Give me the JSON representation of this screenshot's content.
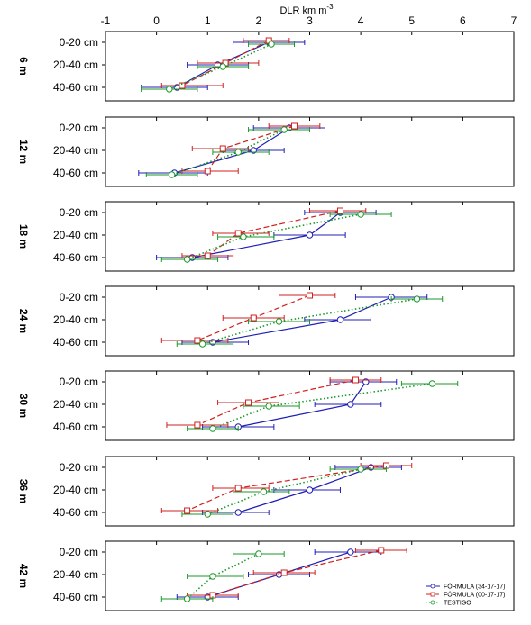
{
  "chart_data": {
    "type": "line",
    "xlabel": "DLR km m-3",
    "xlabel_main": "DLR km m",
    "xlabel_sup": "-3",
    "xlim": [
      -1,
      7
    ],
    "xticks": [
      "-1",
      "0",
      "1",
      "2",
      "3",
      "4",
      "5",
      "6",
      "7"
    ],
    "x_axis_position": "top",
    "depth_categories": [
      "0-20 cm",
      "20-40 cm",
      "40-60 cm"
    ],
    "legend_position": "bottom-right",
    "colors": {
      "formula_34": "#1f1fb4",
      "formula_00": "#d02020",
      "testigo": "#1a9a2a"
    },
    "legend": [
      {
        "key": "formula_34",
        "label": "FÓRMULA (34-17-17)"
      },
      {
        "key": "formula_00",
        "label": "FÓRMULA (00-17-17)"
      },
      {
        "key": "testigo",
        "label": "TESTIGO"
      }
    ],
    "panels": [
      {
        "label": "6 m",
        "series": [
          {
            "key": "formula_34",
            "values": [
              2.2,
              1.2,
              0.4
            ],
            "err_low": [
              1.5,
              0.6,
              -0.3
            ],
            "err_high": [
              2.9,
              1.8,
              1.0
            ]
          },
          {
            "key": "formula_00",
            "values": [
              2.2,
              1.35,
              0.5
            ],
            "err_low": [
              1.7,
              0.8,
              0.1
            ],
            "err_high": [
              2.6,
              2.0,
              1.3
            ]
          },
          {
            "key": "testigo",
            "values": [
              2.25,
              1.3,
              0.25
            ],
            "err_low": [
              1.8,
              0.8,
              -0.3
            ],
            "err_high": [
              2.7,
              1.8,
              0.8
            ]
          }
        ]
      },
      {
        "label": "12 m",
        "series": [
          {
            "key": "formula_34",
            "values": [
              2.6,
              1.9,
              0.35
            ],
            "err_low": [
              1.9,
              1.3,
              -0.35
            ],
            "err_high": [
              3.3,
              2.5,
              1.0
            ]
          },
          {
            "key": "formula_00",
            "values": [
              2.7,
              1.3,
              1.0
            ],
            "err_low": [
              2.2,
              0.7,
              0.5
            ],
            "err_high": [
              3.2,
              1.8,
              1.6
            ]
          },
          {
            "key": "testigo",
            "values": [
              2.5,
              1.6,
              0.3
            ],
            "err_low": [
              1.8,
              1.1,
              -0.2
            ],
            "err_high": [
              3.0,
              2.2,
              0.8
            ]
          }
        ]
      },
      {
        "label": "18 m",
        "series": [
          {
            "key": "formula_34",
            "values": [
              3.6,
              3.0,
              0.7
            ],
            "err_low": [
              2.9,
              2.3,
              0.0
            ],
            "err_high": [
              4.3,
              3.7,
              1.4
            ]
          },
          {
            "key": "formula_00",
            "values": [
              3.6,
              1.6,
              1.0
            ],
            "err_low": [
              3.0,
              1.1,
              0.5
            ],
            "err_high": [
              4.1,
              2.2,
              1.5
            ]
          },
          {
            "key": "testigo",
            "values": [
              4.0,
              1.7,
              0.6
            ],
            "err_low": [
              3.4,
              1.2,
              0.1
            ],
            "err_high": [
              4.6,
              2.3,
              1.2
            ]
          }
        ]
      },
      {
        "label": "24 m",
        "series": [
          {
            "key": "formula_34",
            "values": [
              4.6,
              3.6,
              1.1
            ],
            "err_low": [
              3.9,
              2.9,
              0.5
            ],
            "err_high": [
              5.3,
              4.2,
              1.8
            ]
          },
          {
            "key": "formula_00",
            "values": [
              3.0,
              1.9,
              0.8
            ],
            "err_low": [
              2.4,
              1.3,
              0.1
            ],
            "err_high": [
              3.5,
              2.5,
              1.4
            ]
          },
          {
            "key": "testigo",
            "values": [
              5.1,
              2.4,
              0.9
            ],
            "err_low": [
              4.6,
              1.8,
              0.4
            ],
            "err_high": [
              5.6,
              3.0,
              1.5
            ]
          }
        ]
      },
      {
        "label": "30 m",
        "series": [
          {
            "key": "formula_34",
            "values": [
              4.1,
              3.8,
              1.6
            ],
            "err_low": [
              3.4,
              3.1,
              0.9
            ],
            "err_high": [
              4.7,
              4.4,
              2.3
            ]
          },
          {
            "key": "formula_00",
            "values": [
              3.9,
              1.8,
              0.8
            ],
            "err_low": [
              3.4,
              1.2,
              0.2
            ],
            "err_high": [
              4.4,
              2.4,
              1.4
            ]
          },
          {
            "key": "testigo",
            "values": [
              5.4,
              2.2,
              1.1
            ],
            "err_low": [
              4.8,
              1.7,
              0.6
            ],
            "err_high": [
              5.9,
              2.8,
              1.6
            ]
          }
        ]
      },
      {
        "label": "36 m",
        "series": [
          {
            "key": "formula_34",
            "values": [
              4.2,
              3.0,
              1.6
            ],
            "err_low": [
              3.5,
              2.3,
              0.9
            ],
            "err_high": [
              4.8,
              3.6,
              2.2
            ]
          },
          {
            "key": "formula_00",
            "values": [
              4.5,
              1.6,
              0.6
            ],
            "err_low": [
              4.0,
              1.1,
              0.1
            ],
            "err_high": [
              5.0,
              2.2,
              1.2
            ]
          },
          {
            "key": "testigo",
            "values": [
              4.0,
              2.1,
              1.0
            ],
            "err_low": [
              3.4,
              1.5,
              0.5
            ],
            "err_high": [
              4.5,
              2.6,
              1.5
            ]
          }
        ]
      },
      {
        "label": "42 m",
        "series": [
          {
            "key": "formula_34",
            "values": [
              3.8,
              2.4,
              1.0
            ],
            "err_low": [
              3.1,
              1.8,
              0.4
            ],
            "err_high": [
              4.4,
              3.0,
              1.6
            ]
          },
          {
            "key": "formula_00",
            "values": [
              4.4,
              2.5,
              1.1
            ],
            "err_low": [
              3.9,
              1.9,
              0.6
            ],
            "err_high": [
              4.9,
              3.1,
              1.6
            ]
          },
          {
            "key": "testigo",
            "values": [
              2.0,
              1.1,
              0.6
            ],
            "err_low": [
              1.5,
              0.6,
              0.1
            ],
            "err_high": [
              2.5,
              1.7,
              1.1
            ]
          }
        ]
      }
    ]
  }
}
